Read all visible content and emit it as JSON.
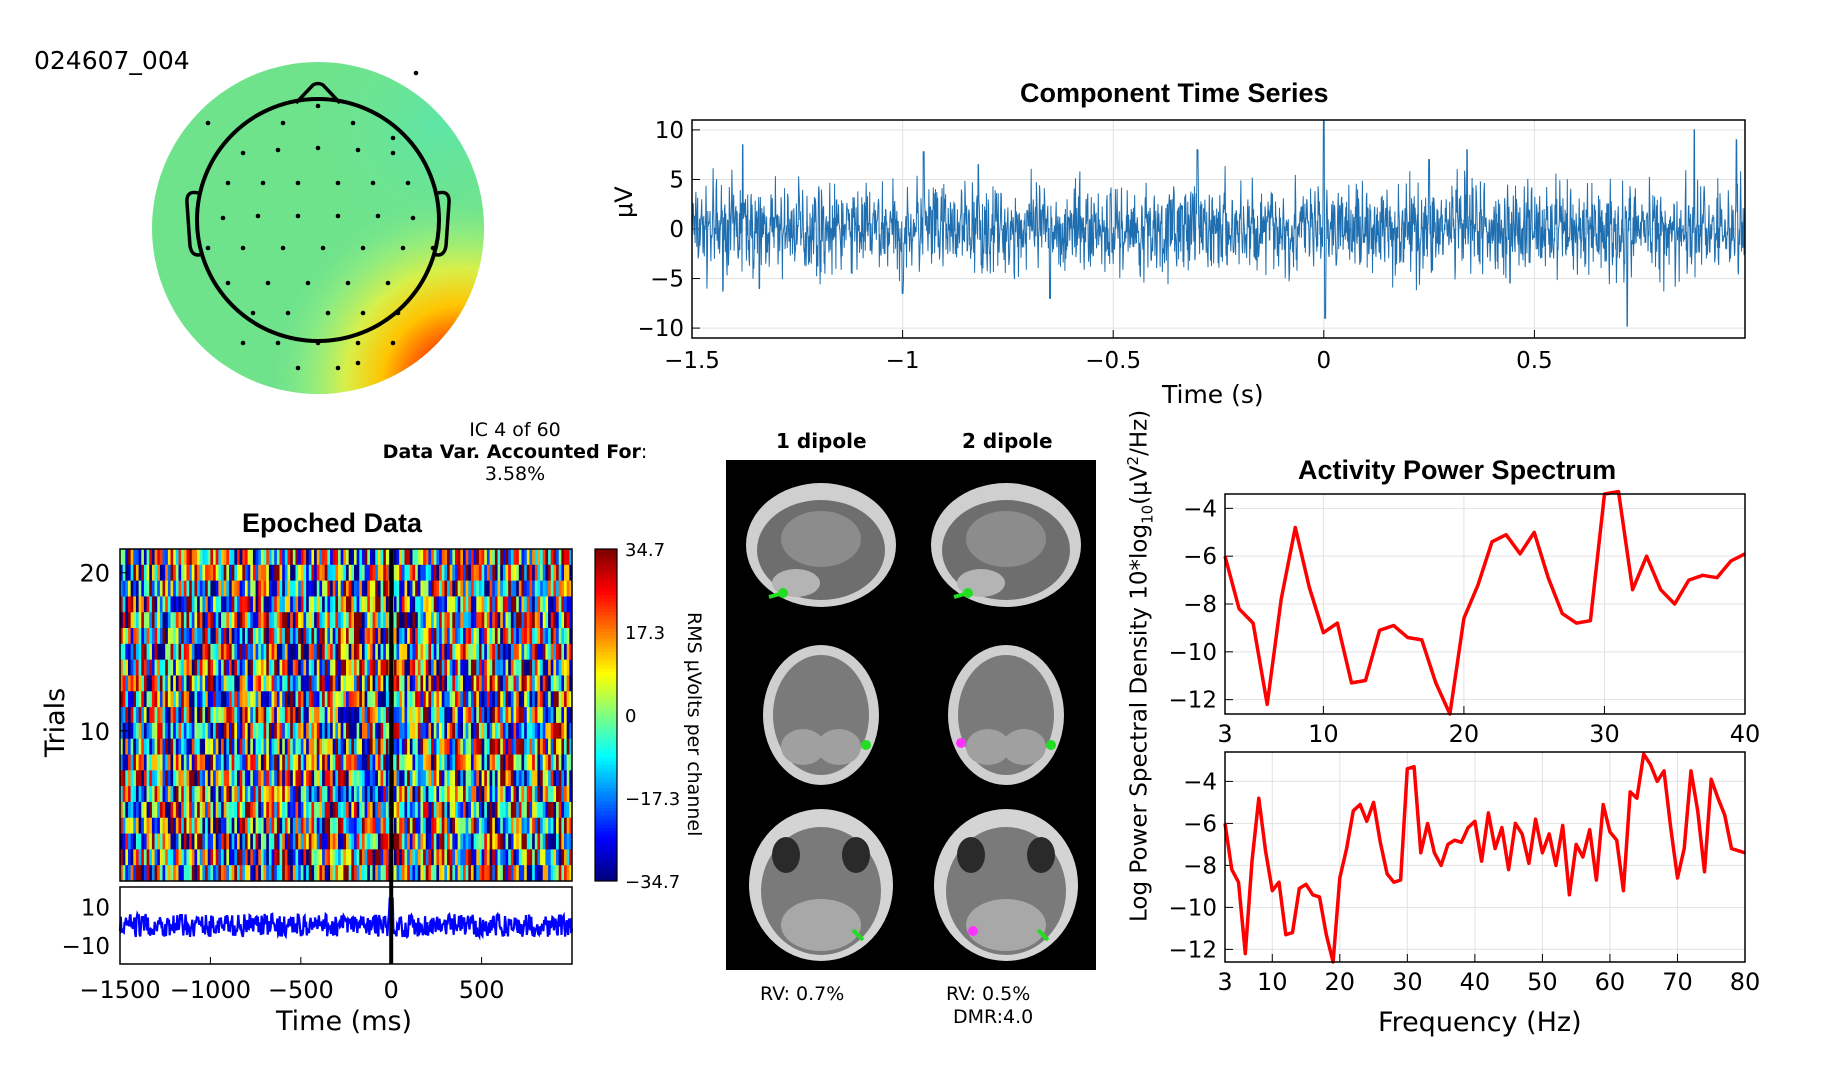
{
  "dataset_id": "024607_004",
  "ic_info": {
    "line1": "IC 4 of 60",
    "bold_label": "Data Var. Accounted For",
    "colon": ":",
    "value": "3.58%"
  },
  "colors": {
    "signal": "#1f6fb0",
    "spectrum": "#ff0000",
    "erp": "#0000ff",
    "topo_base": "#6fe38c",
    "dipole_primary": "#22dd22",
    "dipole_secondary": "#ff33ff",
    "brain_background": "#000000"
  },
  "topomap": {
    "electrodes_shown": true,
    "hot_region": "lower-right"
  },
  "dipoles": {
    "col1_title": "1 dipole",
    "col2_title": "2 dipole",
    "rv1": "RV: 0.7%",
    "rv2": "RV: 0.5%",
    "dmr": "DMR:4.0",
    "views": [
      "sagittal",
      "coronal",
      "axial"
    ]
  },
  "chart_data": [
    {
      "type": "line",
      "title": "Component Time Series",
      "xlabel": "Time (s)",
      "ylabel": "μV",
      "xlim": [
        -1.5,
        1.0
      ],
      "ylim": [
        -11,
        11
      ],
      "xticks": [
        -1.5,
        -1,
        -0.5,
        0,
        0.5
      ],
      "xtick_labels": [
        "−1.5",
        "−1",
        "−0.5",
        "0",
        "0.5"
      ],
      "yticks": [
        10,
        5,
        0,
        -5,
        -10
      ],
      "ytick_labels": [
        "10",
        "5",
        "0",
        "−5",
        "−10"
      ],
      "grid": true,
      "spikes": [
        {
          "x": -1.38,
          "y": 8.5
        },
        {
          "x": -1.34,
          "y": -6.0
        },
        {
          "x": -1.0,
          "y": -6.5
        },
        {
          "x": -0.95,
          "y": 7.8
        },
        {
          "x": -0.82,
          "y": 6.5
        },
        {
          "x": -0.65,
          "y": -7.0
        },
        {
          "x": -0.3,
          "y": 8.0
        },
        {
          "x": 0.0,
          "y": 11.0
        },
        {
          "x": 0.003,
          "y": -9.0
        },
        {
          "x": 0.25,
          "y": 7.0
        },
        {
          "x": 0.34,
          "y": 8.0
        },
        {
          "x": 0.72,
          "y": -9.8
        },
        {
          "x": 0.88,
          "y": 10.0
        },
        {
          "x": 0.98,
          "y": 9.0
        }
      ],
      "noise_amplitude": 3.2
    },
    {
      "type": "heatmap",
      "title": "Epoched Data",
      "ylabel": "Trials",
      "xlabel": "Time (ms)",
      "xlim": [
        -1500,
        1000
      ],
      "ylim": [
        1,
        21
      ],
      "yticks": [
        20,
        10
      ],
      "ytick_labels": [
        "20",
        "10"
      ],
      "xticks": [
        -1500,
        -1000,
        -500,
        0,
        500
      ],
      "xtick_labels": [
        "−1500",
        "−1000",
        "−500",
        "0",
        "500"
      ],
      "event_time": 0,
      "trials": 21,
      "colormap": "jet",
      "colorbar": {
        "label": "RMS μVolts per channel",
        "ticks": [
          34.7,
          17.3,
          0,
          -17.3,
          -34.7
        ],
        "tick_labels": [
          "34.7",
          "17.3",
          "0",
          "−17.3",
          "−34.7"
        ]
      },
      "erp": {
        "yticks": [
          10,
          -10
        ],
        "ytick_labels": [
          "10",
          "−10"
        ],
        "ylim": [
          -20,
          20
        ]
      }
    },
    {
      "type": "line",
      "title": "Activity Power Spectrum",
      "ylabel_main": "Log Power Spectral Density 10*log",
      "ylabel_sub": "10",
      "ylabel_mid": "(μV",
      "ylabel_sup": "2",
      "ylabel_end": "/Hz)",
      "xlim": [
        3,
        40
      ],
      "ylim": [
        -12.6,
        -3.4
      ],
      "xticks": [
        3,
        10,
        20,
        30,
        40
      ],
      "yticks": [
        -4,
        -6,
        -8,
        -10,
        -12
      ],
      "ytick_labels": [
        "−4",
        "−6",
        "−8",
        "−10",
        "−12"
      ],
      "grid": true,
      "x": [
        3,
        4,
        5,
        6,
        7,
        8,
        9,
        10,
        11,
        12,
        13,
        14,
        15,
        16,
        17,
        18,
        19,
        20,
        21,
        22,
        23,
        24,
        25,
        26,
        27,
        28,
        29,
        30,
        31,
        32,
        33,
        34,
        35,
        36,
        37,
        38,
        39,
        40
      ],
      "values": [
        -6.0,
        -8.2,
        -8.8,
        -12.2,
        -7.8,
        -4.8,
        -7.3,
        -9.2,
        -8.8,
        -11.3,
        -11.2,
        -9.1,
        -8.9,
        -9.4,
        -9.5,
        -11.3,
        -12.6,
        -8.6,
        -7.2,
        -5.4,
        -5.1,
        -5.9,
        -5.0,
        -6.9,
        -8.4,
        -8.8,
        -8.7,
        -3.4,
        -3.3,
        -7.4,
        -6.0,
        -7.4,
        -8.0,
        -7.0,
        -6.8,
        -6.9,
        -6.2,
        -5.9
      ]
    },
    {
      "type": "line",
      "xlabel": "Frequency (Hz)",
      "xlim": [
        3,
        80
      ],
      "ylim": [
        -12.6,
        -2.6
      ],
      "xticks": [
        3,
        10,
        20,
        30,
        40,
        50,
        60,
        70,
        80
      ],
      "yticks": [
        -4,
        -6,
        -8,
        -10,
        -12
      ],
      "ytick_labels": [
        "−4",
        "−6",
        "−8",
        "−10",
        "−12"
      ],
      "grid": true,
      "x": [
        3,
        4,
        5,
        6,
        7,
        8,
        9,
        10,
        11,
        12,
        13,
        14,
        15,
        16,
        17,
        18,
        19,
        20,
        21,
        22,
        23,
        24,
        25,
        26,
        27,
        28,
        29,
        30,
        31,
        32,
        33,
        34,
        35,
        36,
        37,
        38,
        39,
        40,
        41,
        42,
        43,
        44,
        45,
        46,
        47,
        48,
        49,
        50,
        51,
        52,
        53,
        54,
        55,
        56,
        57,
        58,
        59,
        60,
        61,
        62,
        63,
        64,
        65,
        66,
        67,
        68,
        69,
        70,
        71,
        72,
        73,
        74,
        75,
        76,
        77,
        78,
        79,
        80
      ],
      "values": [
        -6.0,
        -8.2,
        -8.8,
        -12.2,
        -7.8,
        -4.8,
        -7.3,
        -9.2,
        -8.8,
        -11.3,
        -11.2,
        -9.1,
        -8.9,
        -9.4,
        -9.5,
        -11.3,
        -12.6,
        -8.6,
        -7.2,
        -5.4,
        -5.1,
        -5.9,
        -5.0,
        -6.9,
        -8.4,
        -8.8,
        -8.7,
        -3.4,
        -3.3,
        -7.4,
        -6.0,
        -7.4,
        -8.0,
        -7.0,
        -6.8,
        -6.9,
        -6.2,
        -5.9,
        -7.8,
        -5.5,
        -7.2,
        -6.2,
        -8.2,
        -6.0,
        -6.5,
        -7.9,
        -5.8,
        -7.4,
        -6.5,
        -8.0,
        -6.1,
        -9.4,
        -7.0,
        -7.6,
        -6.3,
        -8.7,
        -5.1,
        -6.4,
        -6.8,
        -9.2,
        -4.5,
        -4.8,
        -2.7,
        -3.2,
        -4.0,
        -3.5,
        -6.2,
        -8.6,
        -7.2,
        -3.5,
        -5.4,
        -8.3,
        -3.9,
        -4.8,
        -5.6,
        -7.2,
        -7.3,
        -7.4
      ],
      "note": ""
    }
  ]
}
